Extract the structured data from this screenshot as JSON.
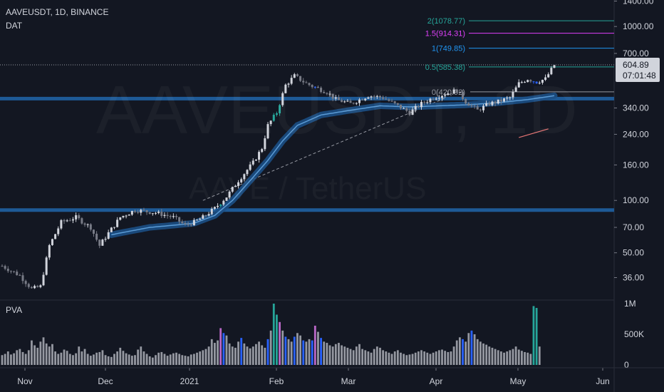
{
  "header": {
    "symbol_line": "AAVEUSDT, 1D, BINANCE",
    "indicator": "DAT"
  },
  "watermark": {
    "symbol": "AAVEUSDT, 1D",
    "pair": "AAVE / TetherUS"
  },
  "volume_pane": {
    "label": "PVA"
  },
  "price_badge": {
    "price": "604.89",
    "countdown": "07:01:48"
  },
  "colors": {
    "background": "#131722",
    "up": "#d1d4dc",
    "down": "#787b86",
    "climax_green": "#26a69a",
    "climax_blue": "#2962ff",
    "climax_magenta": "#ba68c8",
    "level": "#1e5a96",
    "ema": "#2f6fb0"
  },
  "chart_data": {
    "type": "candlestick",
    "title": "AAVEUSDT, 1D, BINANCE",
    "y_scale": "log",
    "ylim": [
      27,
      1420
    ],
    "y_ticks": [
      "1400.00",
      "1000.00",
      "700.00",
      "340.00",
      "240.00",
      "160.00",
      "100.00",
      "70.00",
      "50.00",
      "36.00"
    ],
    "x_ticks": [
      "Nov",
      "Dec",
      "2021",
      "Feb",
      "Mar",
      "Apr",
      "May",
      "Jun"
    ],
    "horizontal_levels": [
      88,
      385
    ],
    "fib_levels": [
      {
        "label": "2(1078.77)",
        "value": 1078.77,
        "color": "#26a69a"
      },
      {
        "label": "1.5(914.31)",
        "value": 914.31,
        "color": "#e040fb"
      },
      {
        "label": "1(749.85)",
        "value": 749.85,
        "color": "#2196f3"
      },
      {
        "label": "0.5(585.38)",
        "value": 585.38,
        "color": "#26a69a"
      },
      {
        "label": "0(420.92)",
        "value": 420.92,
        "color": "#9598a1"
      }
    ],
    "last_price": 604.89,
    "price_path": [
      [
        0,
        42
      ],
      [
        6,
        37
      ],
      [
        10,
        31
      ],
      [
        13,
        32
      ],
      [
        16,
        55
      ],
      [
        20,
        75
      ],
      [
        25,
        80
      ],
      [
        30,
        70
      ],
      [
        33,
        55
      ],
      [
        36,
        65
      ],
      [
        40,
        80
      ],
      [
        45,
        88
      ],
      [
        52,
        85
      ],
      [
        58,
        80
      ],
      [
        62,
        72
      ],
      [
        65,
        75
      ],
      [
        68,
        80
      ],
      [
        72,
        90
      ],
      [
        76,
        105
      ],
      [
        80,
        130
      ],
      [
        85,
        165
      ],
      [
        88,
        200
      ],
      [
        90,
        270
      ],
      [
        93,
        320
      ],
      [
        96,
        460
      ],
      [
        99,
        520
      ],
      [
        103,
        470
      ],
      [
        107,
        440
      ],
      [
        110,
        420
      ],
      [
        113,
        380
      ],
      [
        118,
        360
      ],
      [
        124,
        400
      ],
      [
        129,
        390
      ],
      [
        134,
        350
      ],
      [
        138,
        320
      ],
      [
        142,
        360
      ],
      [
        146,
        390
      ],
      [
        150,
        410
      ],
      [
        154,
        430
      ],
      [
        157,
        370
      ],
      [
        161,
        330
      ],
      [
        165,
        360
      ],
      [
        168,
        370
      ],
      [
        172,
        390
      ],
      [
        175,
        470
      ],
      [
        178,
        500
      ],
      [
        181,
        480
      ],
      [
        184,
        500
      ],
      [
        187,
        600
      ]
    ],
    "ema_path": [
      [
        0,
        44
      ],
      [
        5,
        42
      ],
      [
        10,
        45
      ],
      [
        20,
        55
      ],
      [
        30,
        60
      ],
      [
        40,
        65
      ],
      [
        50,
        70
      ],
      [
        58,
        72
      ],
      [
        65,
        74
      ],
      [
        72,
        82
      ],
      [
        78,
        100
      ],
      [
        84,
        130
      ],
      [
        90,
        170
      ],
      [
        95,
        220
      ],
      [
        100,
        270
      ],
      [
        108,
        310
      ],
      [
        118,
        330
      ],
      [
        128,
        350
      ],
      [
        138,
        345
      ],
      [
        148,
        350
      ],
      [
        158,
        355
      ],
      [
        168,
        365
      ],
      [
        178,
        380
      ],
      [
        187,
        400
      ]
    ],
    "trendline": [
      [
        68,
        100
      ],
      [
        150,
        388
      ]
    ],
    "projection_line": [
      [
        175,
        230
      ],
      [
        185,
        258
      ]
    ],
    "volume_ylim": [
      0,
      1000000
    ],
    "volume_ticks": [
      "1M",
      "500K",
      "0"
    ],
    "volume_series": [
      160,
      180,
      220,
      170,
      190,
      240,
      260,
      210,
      180,
      240,
      400,
      320,
      280,
      380,
      450,
      350,
      300,
      340,
      220,
      180,
      200,
      250,
      230,
      180,
      160,
      190,
      300,
      220,
      260,
      180,
      150,
      170,
      200,
      210,
      240,
      160,
      140,
      130,
      180,
      220,
      280,
      230,
      190,
      170,
      150,
      160,
      250,
      300,
      220,
      180,
      140,
      120,
      160,
      200,
      210,
      180,
      150,
      170,
      190,
      200,
      180,
      160,
      150,
      140,
      170,
      180,
      200,
      220,
      240,
      260,
      300,
      420,
      360,
      400,
      600,
      520,
      480,
      350,
      300,
      280,
      380,
      440,
      350,
      300,
      270,
      300,
      340,
      380,
      320,
      280,
      420,
      560,
      1000,
      820,
      700,
      560,
      460,
      420,
      380,
      460,
      520,
      480,
      400,
      380,
      420,
      400,
      640,
      540,
      440,
      380,
      360,
      320,
      300,
      340,
      360,
      320,
      300,
      280,
      260,
      240,
      300,
      340,
      260,
      240,
      220,
      200,
      260,
      300,
      280,
      240,
      220,
      200,
      180,
      220,
      240,
      200,
      180,
      160,
      170,
      180,
      200,
      220,
      240,
      220,
      200,
      180,
      200,
      220,
      240,
      250,
      230,
      210,
      220,
      300,
      400,
      450,
      420,
      380,
      520,
      560,
      500,
      420,
      380,
      350,
      330,
      300,
      280,
      260,
      240,
      220,
      200,
      220,
      240,
      260,
      300,
      250,
      230,
      210,
      200,
      180,
      960,
      930,
      300
    ]
  }
}
